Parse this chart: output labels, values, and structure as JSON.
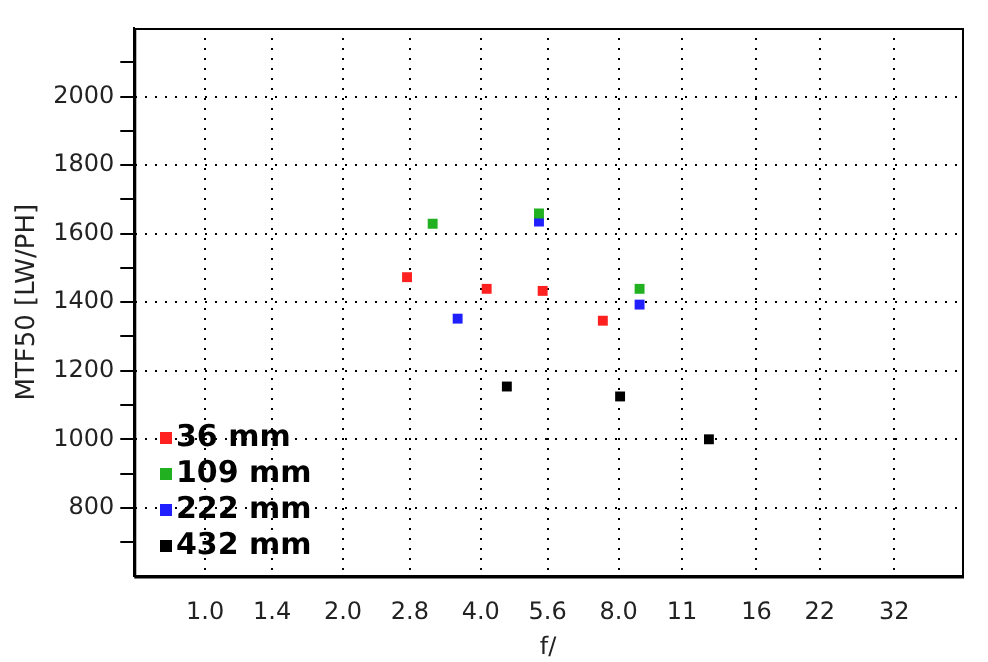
{
  "chart_data": {
    "type": "scatter",
    "xlabel": "f/",
    "ylabel": "MTF50 [LW/PH]",
    "log": "x",
    "marker": "square",
    "grid": true,
    "legend": "bottom left",
    "xlim": [
      0.7,
      45
    ],
    "xticks": [
      {
        "value": 1,
        "label": "1.0"
      },
      {
        "value": 1.4,
        "label": "1.4"
      },
      {
        "value": 2,
        "label": "2.0"
      },
      {
        "value": 2.8,
        "label": "2.8"
      },
      {
        "value": 4,
        "label": "4.0"
      },
      {
        "value": 5.6,
        "label": "5.6"
      },
      {
        "value": 8,
        "label": "8.0"
      },
      11,
      16,
      22,
      32
    ],
    "ylim": [
      600,
      2200
    ],
    "yticks": [
      {
        "value": 700,
        "label": null
      },
      800,
      {
        "value": 900,
        "label": null
      },
      1000,
      {
        "value": 1100,
        "label": null
      },
      1200,
      {
        "value": 1300,
        "label": null
      },
      1400,
      {
        "value": 1500,
        "label": null
      },
      1600,
      {
        "value": 1700,
        "label": null
      },
      1800,
      {
        "value": 1900,
        "label": null
      },
      2000,
      {
        "value": 2100,
        "label": null
      }
    ],
    "series": [
      {
        "name": "36 mm",
        "color": "#ff2020",
        "x": [
          2.76,
          4.12,
          5.46,
          7.39
        ],
        "values": [
          1473,
          1439,
          1433,
          1346
        ]
      },
      {
        "name": "109 mm",
        "color": "#20b020",
        "x": [
          3.14,
          5.36,
          8.89
        ],
        "values": [
          1629,
          1659,
          1439
        ]
      },
      {
        "name": "222 mm",
        "color": "#2020ff",
        "x": [
          3.56,
          5.36,
          8.89
        ],
        "values": [
          1352,
          1635,
          1393
        ]
      },
      {
        "name": "432 mm",
        "color": "#000000",
        "x": [
          4.56,
          8.06,
          12.6
        ],
        "values": [
          1154,
          1125,
          1000
        ]
      }
    ]
  }
}
